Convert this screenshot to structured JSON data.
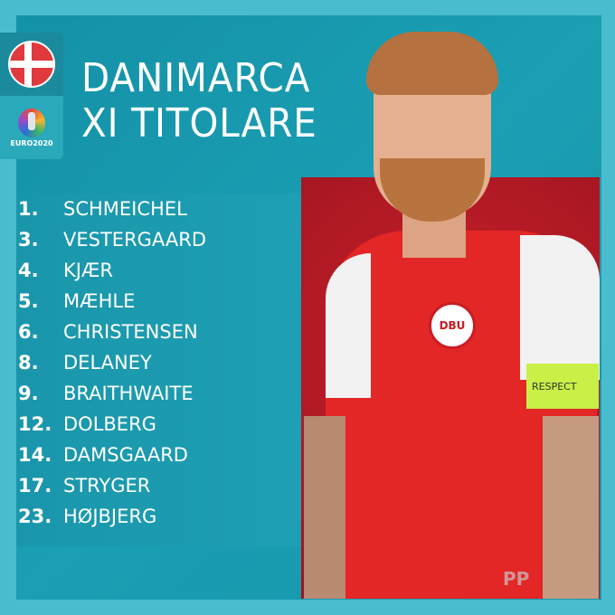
{
  "title": {
    "line1": "DANIMARCA",
    "line2": "XI TITOLARE"
  },
  "badges": {
    "flag": "denmark-flag",
    "logo_text": "EURO2020"
  },
  "players": [
    {
      "number": "1.",
      "name": "SCHMEICHEL"
    },
    {
      "number": "3.",
      "name": "VESTERGAARD"
    },
    {
      "number": "4.",
      "name": "KJÆR"
    },
    {
      "number": "5.",
      "name": "MÆHLE"
    },
    {
      "number": "6.",
      "name": "CHRISTENSEN"
    },
    {
      "number": "8.",
      "name": "DELANEY"
    },
    {
      "number": "9.",
      "name": "BRAITHWAITE"
    },
    {
      "number": "12.",
      "name": "DOLBERG"
    },
    {
      "number": "14.",
      "name": "DAMSGAARD"
    },
    {
      "number": "17.",
      "name": "STRYGER"
    },
    {
      "number": "23.",
      "name": "HØJBJERG"
    }
  ],
  "photo": {
    "crest_text": "DBU",
    "armband_text": "RESPECT"
  },
  "watermark": "PP",
  "colors": {
    "background": "#49bccd",
    "panel": "#1a9fb4",
    "photo_bg": "#c8202a"
  }
}
